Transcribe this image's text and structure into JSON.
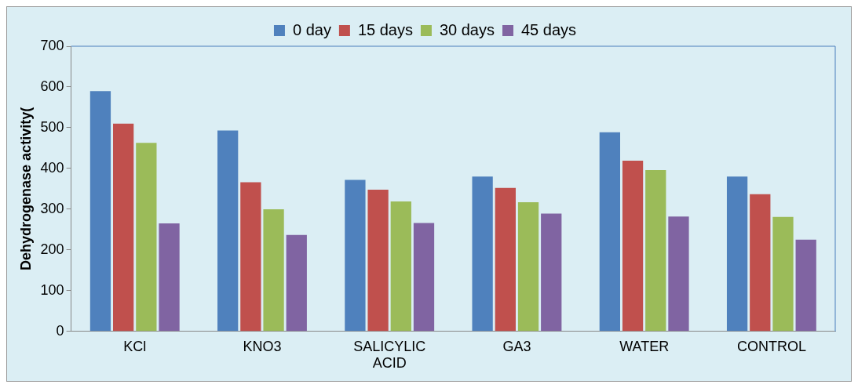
{
  "chart_data": {
    "type": "bar",
    "ylabel": "Dehydrogenase activity(",
    "categories": [
      "KCl",
      "KNO3",
      "SALICYLIC ACID",
      "GA3",
      "WATER",
      "CONTROL"
    ],
    "series": [
      {
        "name": "0 day",
        "color": "#4f81bd",
        "values": [
          590,
          493,
          372,
          380,
          489,
          380
        ]
      },
      {
        "name": "15 days",
        "color": "#c0504d",
        "values": [
          510,
          366,
          348,
          352,
          419,
          337
        ]
      },
      {
        "name": "30 days",
        "color": "#9bbb59",
        "values": [
          463,
          300,
          319,
          317,
          396,
          281
        ]
      },
      {
        "name": "45 days",
        "color": "#8064a2",
        "values": [
          265,
          237,
          266,
          289,
          282,
          225
        ]
      }
    ],
    "ylim": [
      0,
      700
    ],
    "yticks": [
      0,
      100,
      200,
      300,
      400,
      500,
      600,
      700
    ],
    "grid": false,
    "legend": "top"
  }
}
